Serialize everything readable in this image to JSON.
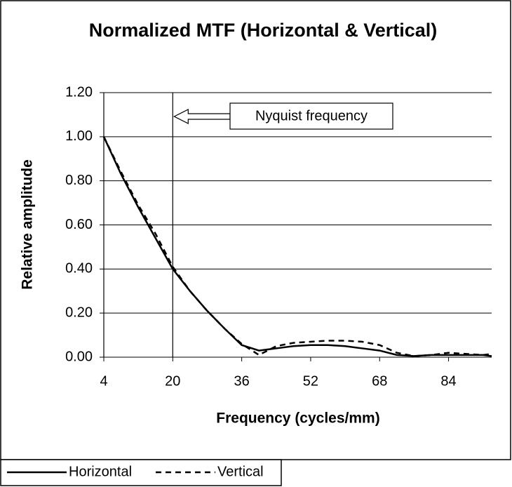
{
  "chart_data": {
    "type": "line",
    "title": "Normalized MTF (Horizontal & Vertical)",
    "x_label": "Frequency (cycles/mm)",
    "y_label": "Relative amplitude",
    "x": [
      4,
      8,
      12,
      16,
      20,
      24,
      28,
      32,
      36,
      40,
      44,
      48,
      52,
      56,
      60,
      64,
      68,
      72,
      76,
      80,
      84,
      88,
      92,
      94
    ],
    "series": [
      {
        "name": "Horizontal",
        "color": "#000000",
        "style": "solid",
        "values": [
          1.0,
          0.83,
          0.68,
          0.54,
          0.4,
          0.3,
          0.21,
          0.13,
          0.055,
          0.03,
          0.04,
          0.05,
          0.055,
          0.055,
          0.05,
          0.04,
          0.03,
          0.01,
          0.005,
          0.01,
          0.01,
          0.01,
          0.01,
          0.005
        ]
      },
      {
        "name": "Vertical",
        "color": "#000000",
        "style": "dashed",
        "values": [
          1.0,
          0.84,
          0.69,
          0.56,
          0.41,
          0.3,
          0.21,
          0.13,
          0.06,
          0.01,
          0.05,
          0.065,
          0.07,
          0.075,
          0.075,
          0.07,
          0.055,
          0.02,
          0.005,
          0.01,
          0.02,
          0.015,
          0.01,
          0.015
        ]
      }
    ],
    "xlim": [
      4,
      94
    ],
    "xticks": [
      4,
      20,
      36,
      52,
      68,
      84
    ],
    "ylim": [
      0,
      1.2
    ],
    "yticks": [
      {
        "value": 0,
        "label": "0.00"
      },
      {
        "value": 0.2,
        "label": "0.20"
      },
      {
        "value": 0.4,
        "label": "0.40"
      },
      {
        "value": 0.6,
        "label": "0.60"
      },
      {
        "value": 0.8,
        "label": "0.80"
      },
      {
        "value": 1.0,
        "label": "1.00"
      },
      {
        "value": 1.2,
        "label": "1.20"
      }
    ],
    "grid": true,
    "legend": "bottom-left",
    "annotation": {
      "text": "Nyquist frequency",
      "x": 20
    }
  }
}
